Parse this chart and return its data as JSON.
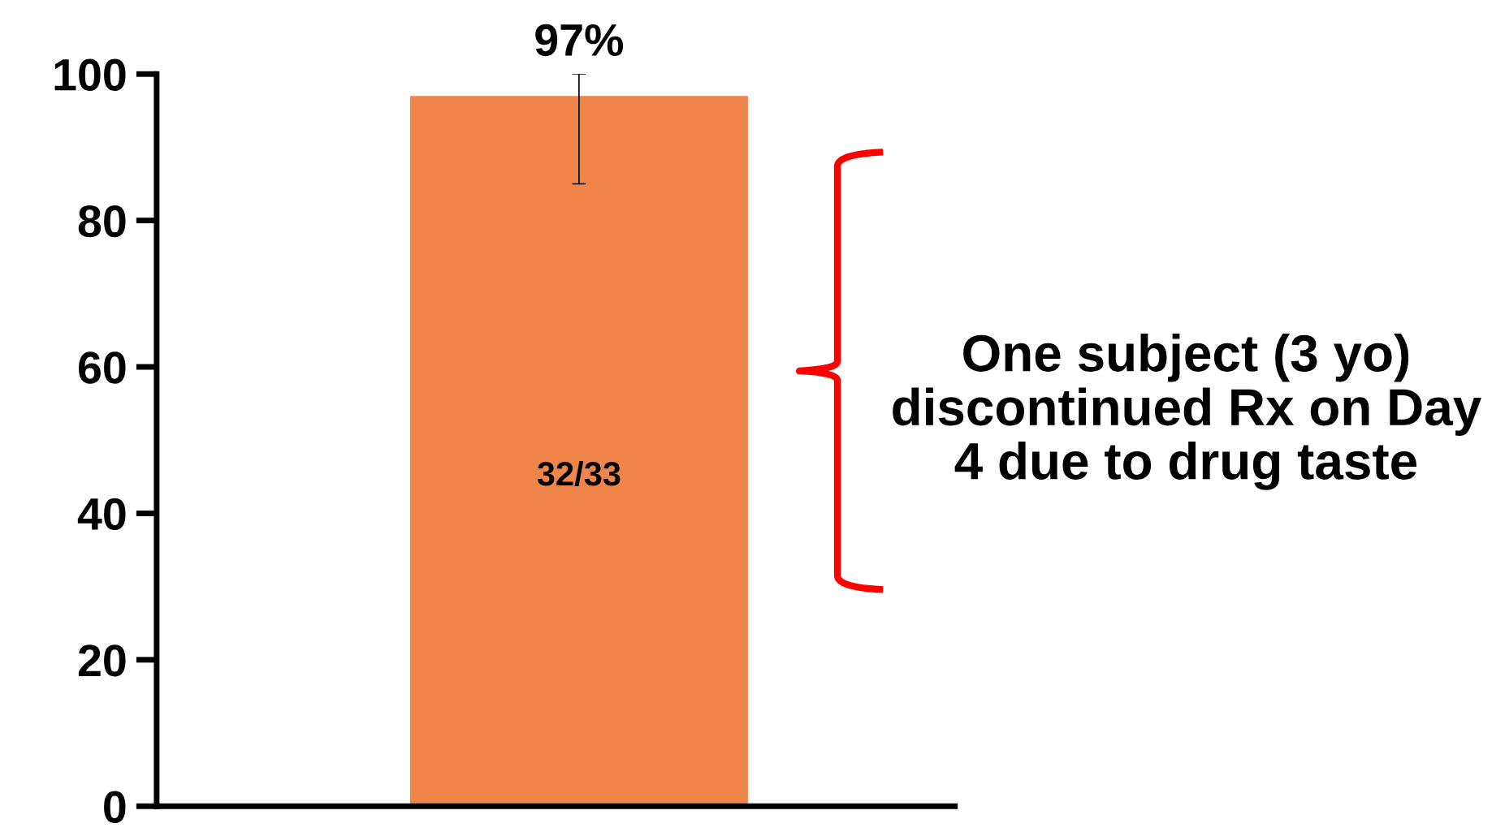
{
  "chart_data": {
    "type": "bar",
    "categories": [
      null
    ],
    "values": [
      97
    ],
    "color": "#f0854a",
    "errors": [
      [
        85,
        100
      ]
    ],
    "value_labels": [
      "97%"
    ],
    "ylim": [
      0,
      100
    ],
    "yticks": [
      0,
      20,
      40,
      60,
      80,
      100
    ],
    "grid": false,
    "legend": false,
    "annotations": [
      "32/33",
      "One subject (3 yo) discontinued Rx on Day 4 due to drug taste"
    ]
  }
}
